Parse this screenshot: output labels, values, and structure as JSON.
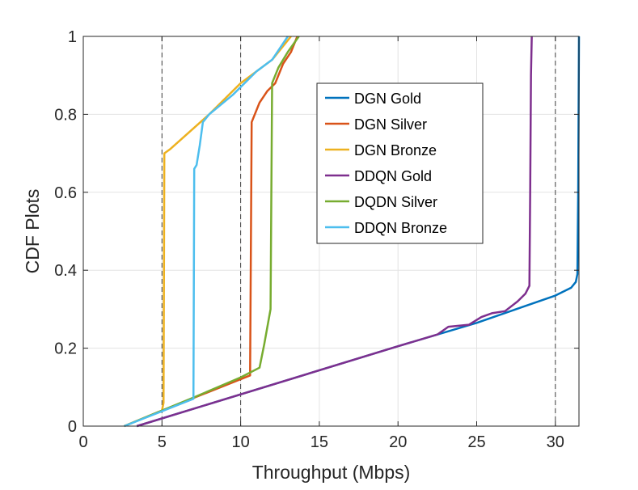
{
  "chart_data": {
    "type": "line",
    "title": "",
    "xlabel": "Throughput (Mbps)",
    "ylabel": "CDF Plots",
    "xlim": [
      0,
      31.5
    ],
    "ylim": [
      0,
      1
    ],
    "x_ticks": [
      0,
      5,
      10,
      15,
      20,
      25,
      30
    ],
    "y_ticks": [
      0,
      0.2,
      0.4,
      0.6,
      0.8,
      1
    ],
    "x_tick_labels": [
      "0",
      "5",
      "10",
      "15",
      "20",
      "25",
      "30"
    ],
    "y_tick_labels": [
      "0",
      "0.2",
      "0.4",
      "0.6",
      "0.8",
      "1"
    ],
    "grid": true,
    "legend_position": "upper-center-right",
    "reference_lines_x": [
      5,
      10,
      30
    ],
    "series": [
      {
        "name": "DGN Gold",
        "color": "#0072BD",
        "points": [
          [
            3.4,
            0
          ],
          [
            20,
            0.205
          ],
          [
            25,
            0.265
          ],
          [
            30,
            0.335
          ],
          [
            31.0,
            0.355
          ],
          [
            31.3,
            0.37
          ],
          [
            31.4,
            0.39
          ],
          [
            31.45,
            0.6
          ],
          [
            31.5,
            1.0
          ]
        ]
      },
      {
        "name": "DGN Silver",
        "color": "#D95319",
        "points": [
          [
            2.6,
            0
          ],
          [
            5,
            0.04
          ],
          [
            10.6,
            0.13
          ],
          [
            10.7,
            0.78
          ],
          [
            11.2,
            0.83
          ],
          [
            11.7,
            0.86
          ],
          [
            12.2,
            0.88
          ],
          [
            12.7,
            0.93
          ],
          [
            13.2,
            0.96
          ],
          [
            13.6,
            1.0
          ]
        ]
      },
      {
        "name": "DGN Bronze",
        "color": "#EDB120",
        "points": [
          [
            2.6,
            0
          ],
          [
            5,
            0.04
          ],
          [
            5.1,
            0.06
          ],
          [
            5.15,
            0.7
          ],
          [
            5.5,
            0.71
          ],
          [
            8,
            0.8
          ],
          [
            10,
            0.88
          ],
          [
            11,
            0.91
          ],
          [
            12,
            0.94
          ],
          [
            13.2,
            1.0
          ]
        ]
      },
      {
        "name": "DDQN Gold",
        "color": "#7E2F8E",
        "points": [
          [
            3.4,
            0
          ],
          [
            20,
            0.205
          ],
          [
            22.5,
            0.235
          ],
          [
            23.2,
            0.255
          ],
          [
            24.5,
            0.26
          ],
          [
            25.3,
            0.28
          ],
          [
            26.0,
            0.29
          ],
          [
            26.8,
            0.295
          ],
          [
            27.6,
            0.32
          ],
          [
            28.1,
            0.34
          ],
          [
            28.35,
            0.36
          ],
          [
            28.4,
            0.6
          ],
          [
            28.45,
            0.9
          ],
          [
            28.5,
            1.0
          ]
        ]
      },
      {
        "name": "DQDN Silver",
        "color": "#77AC30",
        "points": [
          [
            2.6,
            0
          ],
          [
            7.1,
            0.075
          ],
          [
            10.0,
            0.125
          ],
          [
            11.2,
            0.15
          ],
          [
            11.5,
            0.21
          ],
          [
            11.9,
            0.3
          ],
          [
            12.0,
            0.88
          ],
          [
            12.4,
            0.92
          ],
          [
            13.0,
            0.96
          ],
          [
            13.7,
            1.0
          ]
        ]
      },
      {
        "name": "DDQN Bronze",
        "color": "#4DBEEE",
        "points": [
          [
            2.6,
            0
          ],
          [
            7.0,
            0.07
          ],
          [
            7.05,
            0.66
          ],
          [
            7.2,
            0.67
          ],
          [
            7.4,
            0.72
          ],
          [
            7.6,
            0.78
          ],
          [
            8,
            0.8
          ],
          [
            9.5,
            0.85
          ],
          [
            11,
            0.91
          ],
          [
            12,
            0.94
          ],
          [
            13,
            1.0
          ]
        ]
      }
    ]
  }
}
